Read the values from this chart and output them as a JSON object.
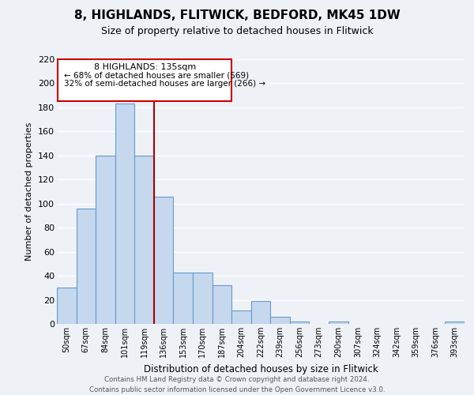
{
  "title": "8, HIGHLANDS, FLITWICK, BEDFORD, MK45 1DW",
  "subtitle": "Size of property relative to detached houses in Flitwick",
  "xlabel": "Distribution of detached houses by size in Flitwick",
  "ylabel": "Number of detached properties",
  "bar_labels": [
    "50sqm",
    "67sqm",
    "84sqm",
    "101sqm",
    "119sqm",
    "136sqm",
    "153sqm",
    "170sqm",
    "187sqm",
    "204sqm",
    "222sqm",
    "239sqm",
    "256sqm",
    "273sqm",
    "290sqm",
    "307sqm",
    "324sqm",
    "342sqm",
    "359sqm",
    "376sqm",
    "393sqm"
  ],
  "bar_heights": [
    30,
    96,
    140,
    183,
    140,
    106,
    43,
    43,
    32,
    11,
    19,
    6,
    2,
    0,
    2,
    0,
    0,
    0,
    0,
    0,
    2
  ],
  "bar_color": "#c5d8ed",
  "bar_edge_color": "#6699cc",
  "property_line_index": 5,
  "property_line_color": "#aa0000",
  "annotation_title": "8 HIGHLANDS: 135sqm",
  "annotation_line1": "← 68% of detached houses are smaller (569)",
  "annotation_line2": "32% of semi-detached houses are larger (266) →",
  "annotation_box_color": "#cc0000",
  "ylim": [
    0,
    220
  ],
  "yticks": [
    0,
    20,
    40,
    60,
    80,
    100,
    120,
    140,
    160,
    180,
    200,
    220
  ],
  "footer_line1": "Contains HM Land Registry data © Crown copyright and database right 2024.",
  "footer_line2": "Contains public sector information licensed under the Open Government Licence v3.0.",
  "background_color": "#eef2f7",
  "grid_color": "#ffffff",
  "title_fontsize": 11,
  "subtitle_fontsize": 9
}
